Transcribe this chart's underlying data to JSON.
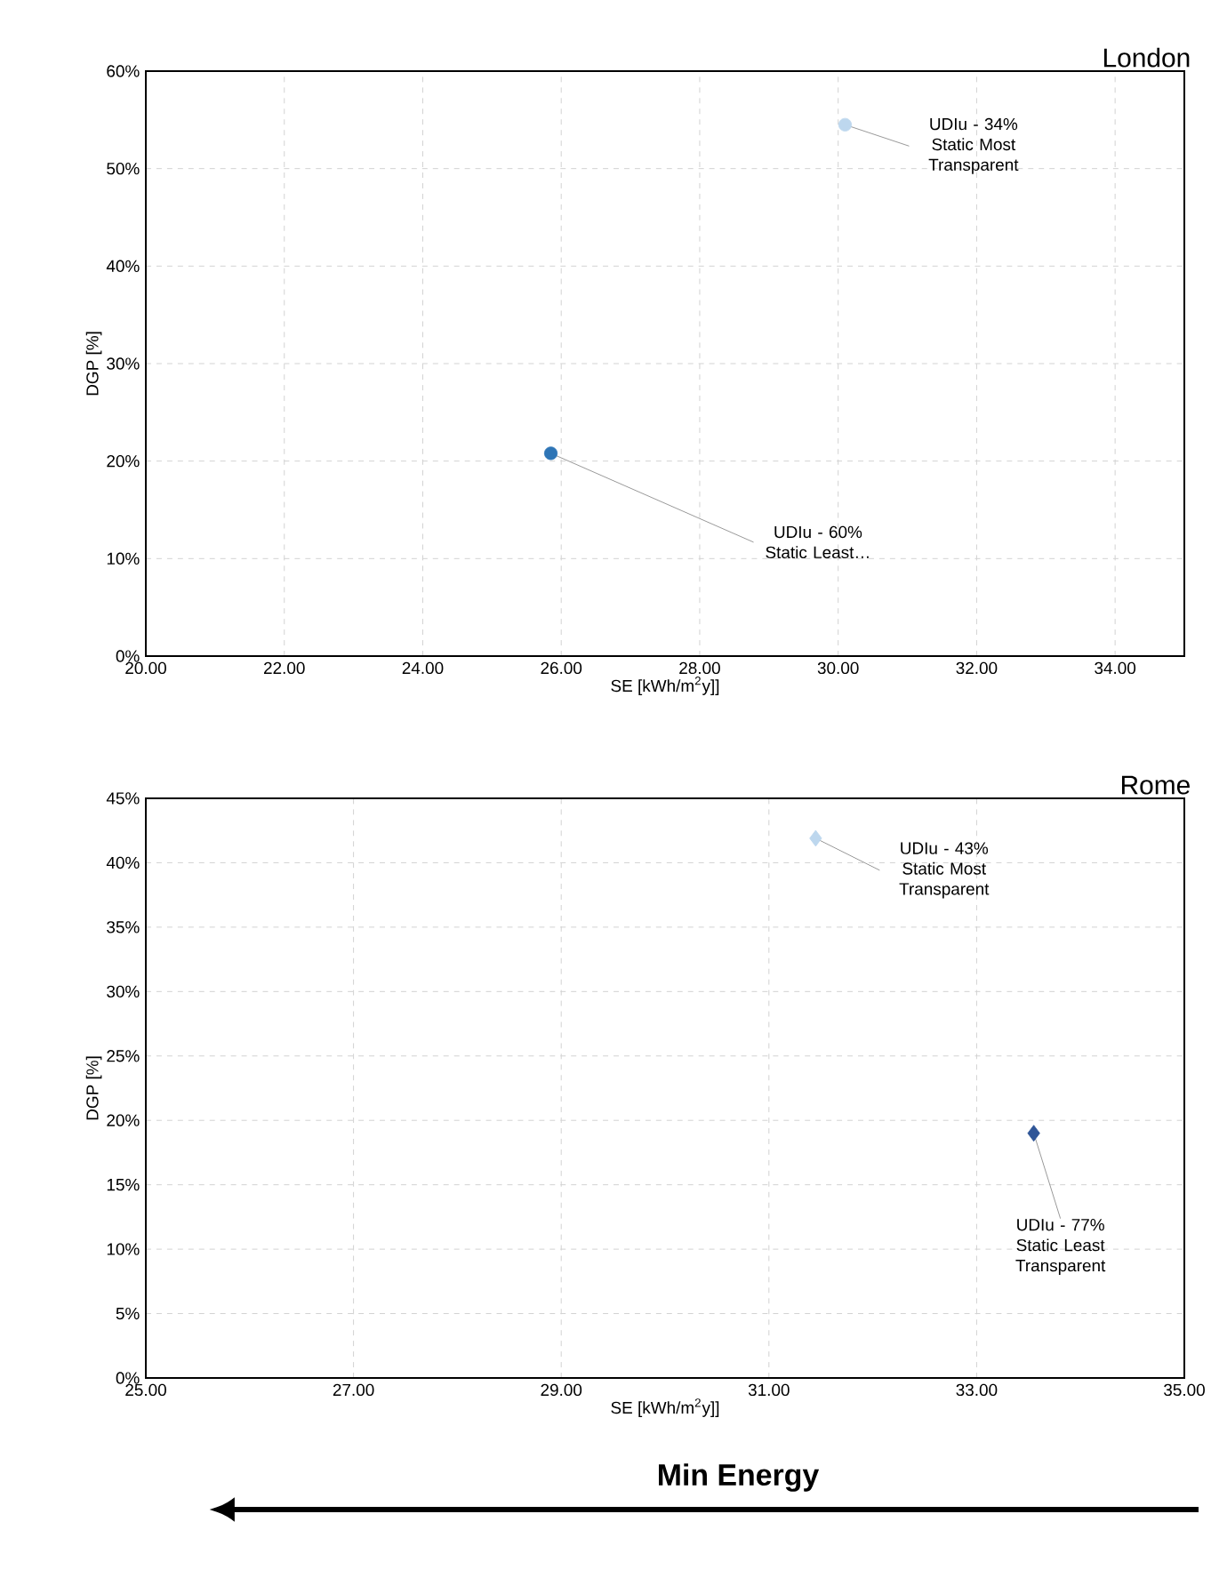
{
  "chart_data": [
    {
      "type": "scatter",
      "title": "London",
      "xlabel": "SE [kWh/m$^{2}$y]]",
      "ylabel": "DGP [%]",
      "marker": "circle",
      "grid": true,
      "xlim": [
        20,
        35
      ],
      "xticks": [
        {
          "value": 20,
          "label": "20.00"
        },
        {
          "value": 22,
          "label": "22.00"
        },
        {
          "value": 24,
          "label": "24.00"
        },
        {
          "value": 26,
          "label": "26.00"
        },
        {
          "value": 28,
          "label": "28.00"
        },
        {
          "value": 30,
          "label": "30.00"
        },
        {
          "value": 32,
          "label": "32.00"
        },
        {
          "value": 34,
          "label": "34.00"
        }
      ],
      "ylim": [
        0,
        60
      ],
      "yticks": [
        {
          "value": 0,
          "label": "0%"
        },
        {
          "value": 10,
          "label": "10%"
        },
        {
          "value": 20,
          "label": "20%"
        },
        {
          "value": 30,
          "label": "30%"
        },
        {
          "value": 40,
          "label": "40%"
        },
        {
          "value": 50,
          "label": "50%"
        },
        {
          "value": 60,
          "label": "60%"
        }
      ],
      "series": [
        {
          "x": [
            30.1
          ],
          "values": [
            54.5
          ],
          "color": "#bdd7ee"
        },
        {
          "x": [
            25.85
          ],
          "values": [
            20.8
          ],
          "color": "#2e75b6"
        }
      ],
      "annotations": [
        {
          "text": "UDIu - 34% Static Most Transparent",
          "x": 30.1,
          "y": 54.5
        },
        {
          "text": "UDIu -  60% Static Least…",
          "x": 25.85,
          "y": 20.8
        }
      ]
    },
    {
      "type": "scatter",
      "title": "Rome",
      "xlabel": "SE [kWh/m$^{2}$y]]",
      "ylabel": "DGP [%]",
      "marker": "diamond",
      "grid": true,
      "xlim": [
        25,
        35
      ],
      "xticks": [
        {
          "value": 25,
          "label": "25.00"
        },
        {
          "value": 27,
          "label": "27.00"
        },
        {
          "value": 29,
          "label": "29.00"
        },
        {
          "value": 31,
          "label": "31.00"
        },
        {
          "value": 33,
          "label": "33.00"
        },
        {
          "value": 35,
          "label": "35.00"
        }
      ],
      "ylim": [
        0,
        45
      ],
      "yticks": [
        {
          "value": 0,
          "label": "0%"
        },
        {
          "value": 5,
          "label": "5%"
        },
        {
          "value": 10,
          "label": "10%"
        },
        {
          "value": 15,
          "label": "15%"
        },
        {
          "value": 20,
          "label": "20%"
        },
        {
          "value": 25,
          "label": "25%"
        },
        {
          "value": 30,
          "label": "30%"
        },
        {
          "value": 35,
          "label": "35%"
        },
        {
          "value": 40,
          "label": "40%"
        },
        {
          "value": 45,
          "label": "45%"
        }
      ],
      "series": [
        {
          "x": [
            31.45
          ],
          "values": [
            41.9
          ],
          "color": "#bdd7ee"
        },
        {
          "x": [
            33.55
          ],
          "values": [
            19.0
          ],
          "color": "#2f5597"
        }
      ],
      "annotations": [
        {
          "text": "UDIu - 43% Static Most Transparent",
          "x": 31.45,
          "y": 41.9
        },
        {
          "text": "UDIu - 77% Static Least Transparent",
          "x": 33.55,
          "y": 19.0
        },
        "Min Energy"
      ]
    }
  ]
}
